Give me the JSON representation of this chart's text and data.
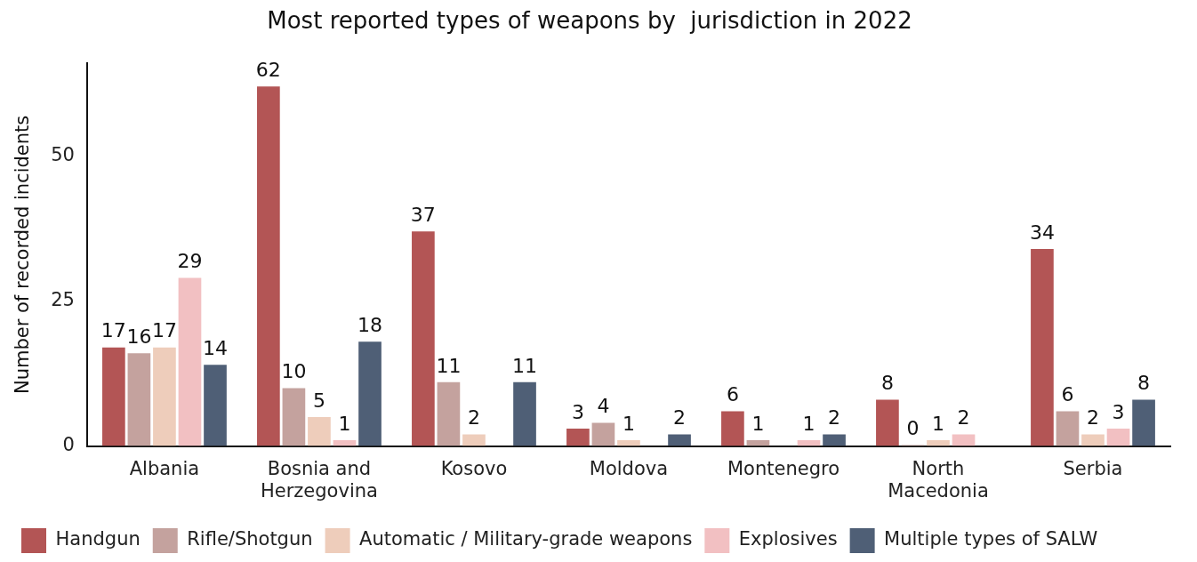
{
  "chart_data": {
    "type": "bar",
    "title": "Most reported types of weapons by  jurisdiction in 2022",
    "ylabel": "Number of recorded incidents",
    "categories": [
      "Albania",
      "Bosnia and Herzegovina",
      "Kosovo",
      "Moldova",
      "Montenegro",
      "North Macedonia",
      "Serbia"
    ],
    "series": [
      {
        "name": "Handgun",
        "color": "#b35555",
        "values": [
          17,
          62,
          37,
          3,
          6,
          8,
          34
        ],
        "value_labels": [
          "17",
          "62",
          "37",
          "3",
          "6",
          "8",
          "34"
        ]
      },
      {
        "name": "Rifle/Shotgun",
        "color": "#c4a29e",
        "values": [
          16,
          10,
          11,
          4,
          1,
          0,
          6
        ],
        "value_labels": [
          "16",
          "10",
          "11",
          "4",
          "1",
          "0",
          "6"
        ]
      },
      {
        "name": "Automatic / Military-grade weapons",
        "color": "#eecdbb",
        "values": [
          17,
          5,
          2,
          1,
          null,
          1,
          2
        ],
        "value_labels": [
          "17",
          "5",
          "2",
          "1",
          null,
          "1",
          "2"
        ]
      },
      {
        "name": "Explosives",
        "color": "#f2c0c2",
        "values": [
          29,
          1,
          null,
          null,
          1,
          2,
          3
        ],
        "value_labels": [
          "29",
          "1",
          null,
          null,
          "1",
          "2",
          "3"
        ]
      },
      {
        "name": "Multiple types of SALW",
        "color": "#4f5f76",
        "values": [
          14,
          18,
          11,
          2,
          2,
          null,
          8
        ],
        "value_labels": [
          "14",
          "18",
          "11",
          "2",
          "2",
          null,
          "8"
        ]
      }
    ],
    "ylim": [
      0,
      66
    ],
    "yticks": [
      0,
      25,
      50
    ],
    "grid": false,
    "legend": "bottom"
  }
}
